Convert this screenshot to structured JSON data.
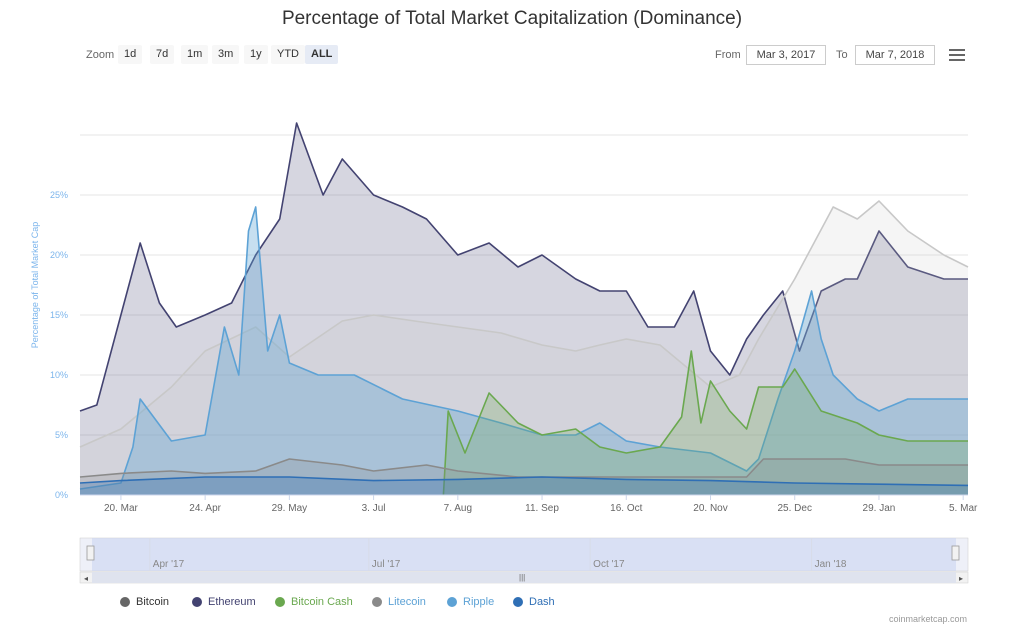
{
  "header": {
    "title": "Percentage of Total Market Capitalization (Dominance)"
  },
  "zoom": {
    "label": "Zoom",
    "buttons": [
      "1d",
      "7d",
      "1m",
      "3m",
      "1y",
      "YTD",
      "ALL"
    ],
    "active": "ALL"
  },
  "range": {
    "from_label": "From",
    "from_value": "Mar 3, 2017",
    "to_label": "To",
    "to_value": "Mar 7, 2018"
  },
  "menu": {
    "icon": "hamburger-menu-icon"
  },
  "credits": "coinmarketcap.com",
  "colors": {
    "bitcoin": "#c8c8c8",
    "ethereum": "#434371",
    "bitcoin_cash": "#6aa84f",
    "litecoin": "#8a8a8a",
    "ripple": "#5da2d5",
    "dash": "#2f6fb5"
  },
  "chart_data": {
    "type": "area",
    "ylabel": "Percentage of Total Market Cap",
    "ylim": [
      0,
      30
    ],
    "yticks": [
      0,
      5,
      10,
      15,
      20,
      25
    ],
    "ytick_labels": [
      "0%",
      "5%",
      "10%",
      "15%",
      "20%",
      "25%"
    ],
    "xlim": [
      "2017-03-03",
      "2018-03-07"
    ],
    "xticks": [
      {
        "date": "2017-03-20",
        "label": "20. Mar"
      },
      {
        "date": "2017-04-24",
        "label": "24. Apr"
      },
      {
        "date": "2017-05-29",
        "label": "29. May"
      },
      {
        "date": "2017-07-03",
        "label": "3. Jul"
      },
      {
        "date": "2017-08-07",
        "label": "7. Aug"
      },
      {
        "date": "2017-09-11",
        "label": "11. Sep"
      },
      {
        "date": "2017-10-16",
        "label": "16. Oct"
      },
      {
        "date": "2017-11-20",
        "label": "20. Nov"
      },
      {
        "date": "2017-12-25",
        "label": "25. Dec"
      },
      {
        "date": "2018-01-29",
        "label": "29. Jan"
      },
      {
        "date": "2018-03-05",
        "label": "5. Mar"
      }
    ],
    "navigator_ticks": [
      {
        "date": "2017-04-01",
        "label": "Apr '17"
      },
      {
        "date": "2017-07-01",
        "label": "Jul '17"
      },
      {
        "date": "2017-10-01",
        "label": "Oct '17"
      },
      {
        "date": "2018-01-01",
        "label": "Jan '18"
      }
    ],
    "grid": true,
    "legend_position": "bottom-left",
    "series": [
      {
        "name": "Bitcoin",
        "color_key": "bitcoin",
        "x": [
          "2017-03-03",
          "2017-03-20",
          "2017-04-10",
          "2017-04-24",
          "2017-05-15",
          "2017-05-29",
          "2017-06-20",
          "2017-07-03",
          "2017-07-20",
          "2017-08-07",
          "2017-08-25",
          "2017-09-11",
          "2017-09-25",
          "2017-10-05",
          "2017-10-16",
          "2017-10-30",
          "2017-11-08",
          "2017-11-20",
          "2017-12-02",
          "2017-12-10",
          "2017-12-25",
          "2018-01-10",
          "2018-01-20",
          "2018-01-29",
          "2018-02-10",
          "2018-02-25",
          "2018-03-07"
        ],
        "values": [
          4,
          5.5,
          9,
          12,
          14,
          11.5,
          14.5,
          15,
          14.5,
          14,
          13.5,
          12.5,
          12,
          12.5,
          13,
          12.5,
          11,
          9,
          10,
          13,
          18,
          24,
          23,
          24.5,
          22,
          20,
          19
        ]
      },
      {
        "name": "Ethereum",
        "color_key": "ethereum",
        "x": [
          "2017-03-03",
          "2017-03-10",
          "2017-03-20",
          "2017-03-28",
          "2017-04-05",
          "2017-04-12",
          "2017-04-24",
          "2017-05-05",
          "2017-05-15",
          "2017-05-25",
          "2017-06-01",
          "2017-06-12",
          "2017-06-20",
          "2017-07-03",
          "2017-07-15",
          "2017-07-25",
          "2017-08-07",
          "2017-08-20",
          "2017-09-01",
          "2017-09-11",
          "2017-09-25",
          "2017-10-05",
          "2017-10-16",
          "2017-10-25",
          "2017-11-05",
          "2017-11-13",
          "2017-11-20",
          "2017-11-28",
          "2017-12-05",
          "2017-12-12",
          "2017-12-20",
          "2017-12-27",
          "2018-01-05",
          "2018-01-15",
          "2018-01-20",
          "2018-01-29",
          "2018-02-10",
          "2018-02-25",
          "2018-03-07"
        ],
        "values": [
          7,
          7.5,
          15,
          21,
          16,
          14,
          15,
          16,
          20,
          23,
          31,
          25,
          28,
          25,
          24,
          23,
          20,
          21,
          19,
          20,
          18,
          17,
          17,
          14,
          14,
          17,
          12,
          10,
          13,
          15,
          17,
          12,
          17,
          18,
          18,
          22,
          19,
          18,
          18
        ]
      },
      {
        "name": "Bitcoin Cash",
        "color_key": "bitcoin_cash",
        "x": [
          "2017-08-01",
          "2017-08-03",
          "2017-08-10",
          "2017-08-20",
          "2017-09-01",
          "2017-09-11",
          "2017-09-25",
          "2017-10-05",
          "2017-10-16",
          "2017-10-30",
          "2017-11-08",
          "2017-11-12",
          "2017-11-16",
          "2017-11-20",
          "2017-11-28",
          "2017-12-05",
          "2017-12-10",
          "2017-12-20",
          "2017-12-25",
          "2018-01-05",
          "2018-01-20",
          "2018-01-29",
          "2018-02-10",
          "2018-02-25",
          "2018-03-07"
        ],
        "values": [
          0,
          7,
          3.5,
          8.5,
          6,
          5,
          5.5,
          4,
          3.5,
          4,
          6.5,
          12,
          6,
          9.5,
          7,
          5.5,
          9,
          9,
          10.5,
          7,
          6,
          5,
          4.5,
          4.5,
          4.5
        ]
      },
      {
        "name": "Litecoin",
        "color_key": "litecoin",
        "x": [
          "2017-03-03",
          "2017-03-20",
          "2017-04-10",
          "2017-04-24",
          "2017-05-15",
          "2017-05-29",
          "2017-06-20",
          "2017-07-03",
          "2017-07-25",
          "2017-08-07",
          "2017-09-01",
          "2017-09-11",
          "2017-10-05",
          "2017-10-16",
          "2017-11-05",
          "2017-11-20",
          "2017-12-05",
          "2017-12-12",
          "2017-12-25",
          "2018-01-15",
          "2018-01-29",
          "2018-02-25",
          "2018-03-07"
        ],
        "values": [
          1.5,
          1.8,
          2,
          1.8,
          2,
          3,
          2.5,
          2,
          2.5,
          2,
          1.5,
          1.5,
          1.5,
          1.5,
          1.5,
          1.5,
          1.5,
          3,
          3,
          3,
          2.5,
          2.5,
          2.5
        ]
      },
      {
        "name": "Ripple",
        "color_key": "ripple",
        "x": [
          "2017-03-03",
          "2017-03-20",
          "2017-03-25",
          "2017-03-28",
          "2017-04-10",
          "2017-04-24",
          "2017-05-02",
          "2017-05-08",
          "2017-05-12",
          "2017-05-15",
          "2017-05-20",
          "2017-05-25",
          "2017-05-29",
          "2017-06-10",
          "2017-06-25",
          "2017-07-15",
          "2017-08-07",
          "2017-08-25",
          "2017-09-11",
          "2017-09-25",
          "2017-10-05",
          "2017-10-16",
          "2017-10-30",
          "2017-11-20",
          "2017-12-05",
          "2017-12-10",
          "2017-12-18",
          "2017-12-25",
          "2018-01-01",
          "2018-01-05",
          "2018-01-10",
          "2018-01-20",
          "2018-01-29",
          "2018-02-10",
          "2018-02-25",
          "2018-03-07"
        ],
        "values": [
          0.5,
          1,
          4,
          8,
          4.5,
          5,
          14,
          10,
          22,
          24,
          12,
          15,
          11,
          10,
          10,
          8,
          7,
          6,
          5,
          5,
          6,
          4.5,
          4,
          3.5,
          2,
          3,
          8,
          12,
          17,
          13,
          10,
          8,
          7,
          8,
          8,
          8
        ]
      },
      {
        "name": "Dash",
        "color_key": "dash",
        "x": [
          "2017-03-03",
          "2017-03-20",
          "2017-04-24",
          "2017-05-29",
          "2017-07-03",
          "2017-08-07",
          "2017-09-11",
          "2017-10-16",
          "2017-11-20",
          "2017-12-25",
          "2018-01-29",
          "2018-03-07"
        ],
        "values": [
          1,
          1.2,
          1.5,
          1.5,
          1.2,
          1.3,
          1.5,
          1.3,
          1.2,
          1.0,
          0.9,
          0.8
        ]
      }
    ]
  }
}
